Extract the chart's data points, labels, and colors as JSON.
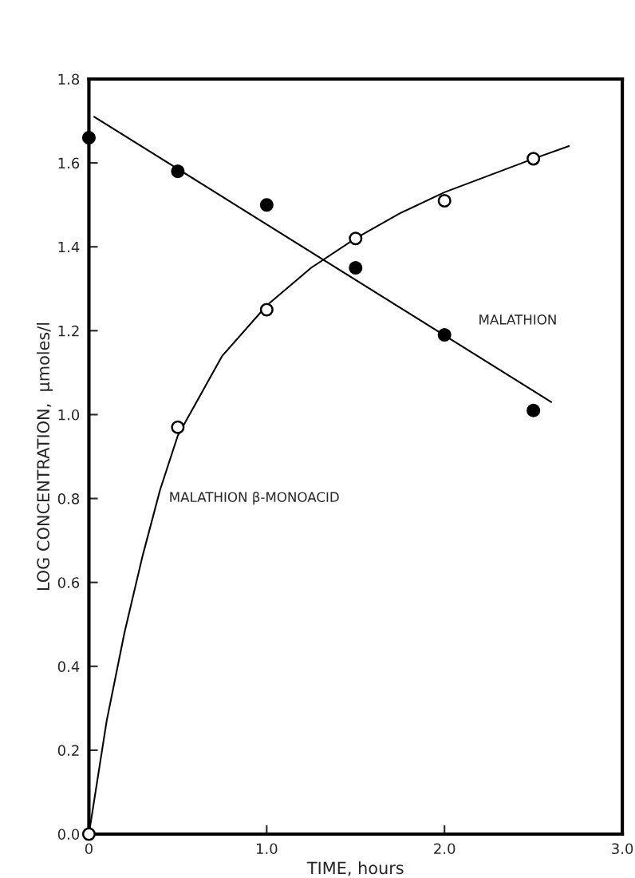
{
  "chart_data": {
    "type": "scatter",
    "xlabel": "TIME, hours",
    "ylabel": "LOG CONCENTRATION,  μmoles/l",
    "xlim": [
      0,
      3.0
    ],
    "ylim": [
      0,
      1.8
    ],
    "xticks": [
      0,
      {
        "value": 1.0,
        "label": "1.0"
      },
      {
        "value": 2.0,
        "label": "2.0"
      },
      {
        "value": 3.0,
        "label": "3.0"
      }
    ],
    "yticks": [
      {
        "value": 0.0,
        "label": "0.0"
      },
      0.2,
      0.4,
      0.6,
      0.8,
      {
        "value": 1.0,
        "label": "1.0"
      },
      1.2,
      1.4,
      1.6,
      1.8
    ],
    "grid": false,
    "legend": false,
    "series": [
      {
        "marker": "circle",
        "color": "#000000",
        "x": [
          0,
          0.5,
          1.0,
          1.5,
          2.0,
          2.5
        ],
        "values": [
          1.66,
          1.58,
          1.5,
          1.35,
          1.19,
          1.01
        ]
      },
      {
        "marker": "circle",
        "color": "#ffffff",
        "x": [
          0,
          0.5,
          1.0,
          1.5,
          2.0,
          2.5
        ],
        "values": [
          0.0,
          0.97,
          1.25,
          1.42,
          1.51,
          1.61
        ]
      },
      {
        "type": "line",
        "color": "#000000",
        "x": [
          0.03,
          2.6
        ],
        "values": [
          1.71,
          1.03
        ]
      },
      {
        "type": "line",
        "color": "#000000",
        "x": [
          0,
          0.1,
          0.2,
          0.3,
          0.4,
          0.5,
          0.75,
          1.0,
          1.25,
          1.5,
          1.75,
          2.0,
          2.25,
          2.5,
          2.7
        ],
        "values": [
          0,
          0.27,
          0.48,
          0.66,
          0.82,
          0.95,
          1.14,
          1.26,
          1.35,
          1.42,
          1.48,
          1.53,
          1.57,
          1.61,
          1.64
        ]
      }
    ],
    "annotations": [
      "MALATHION",
      "MALATHION β-MONOACID"
    ]
  }
}
